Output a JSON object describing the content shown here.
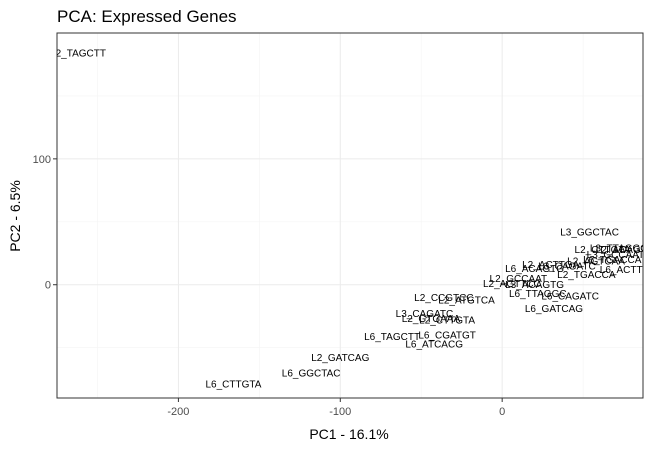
{
  "chart_data": {
    "type": "scatter",
    "title": "PCA: Expressed Genes",
    "xlabel": "PC1 - 16.1%",
    "ylabel": "PC2 - 6.5%",
    "xlim": [
      -275,
      87
    ],
    "ylim": [
      -90,
      200
    ],
    "x_ticks": [
      -200,
      -100,
      0
    ],
    "y_ticks": [
      0,
      100
    ],
    "grid": true,
    "legend": "none",
    "points": [
      {
        "label": "L2_TAGCTT",
        "x": -262,
        "y": 184
      },
      {
        "label": "L3_GGCTAC",
        "x": 54,
        "y": 42
      },
      {
        "label": "L2_CTTGTA",
        "x": 62,
        "y": 28
      },
      {
        "label": "L3_TTAGGC",
        "x": 72,
        "y": 29
      },
      {
        "label": "L2_ACAGTG",
        "x": 76,
        "y": 28
      },
      {
        "label": "L3_GCCAAT",
        "x": 70,
        "y": 24
      },
      {
        "label": "L6_TGACCA",
        "x": 68,
        "y": 20
      },
      {
        "label": "L2_AGTCAA",
        "x": 58,
        "y": 19
      },
      {
        "label": "L6_ACTTGA",
        "x": 78,
        "y": 12
      },
      {
        "label": "L2_ACTTGA",
        "x": 30,
        "y": 16
      },
      {
        "label": "L3_CAGATC",
        "x": 40,
        "y": 15
      },
      {
        "label": "L6_ACAGTG",
        "x": 20,
        "y": 13
      },
      {
        "label": "L2_TGACCA",
        "x": 52,
        "y": 8
      },
      {
        "label": "L2_GCCAAT",
        "x": 10,
        "y": 5
      },
      {
        "label": "L2_AGTTCC",
        "x": 6,
        "y": 1
      },
      {
        "label": "L3_ACAGTG",
        "x": 20,
        "y": 0
      },
      {
        "label": "L6_TTAGGC",
        "x": 22,
        "y": -7
      },
      {
        "label": "L6_CAGATC",
        "x": 42,
        "y": -9
      },
      {
        "label": "L6_GATCAG",
        "x": 32,
        "y": -19
      },
      {
        "label": "L2_CCGTCC",
        "x": -36,
        "y": -10
      },
      {
        "label": "L2_ATGTCA",
        "x": -22,
        "y": -12
      },
      {
        "label": "L3_CAGATC",
        "x": -48,
        "y": -23
      },
      {
        "label": "L2_GTGAAA",
        "x": -44,
        "y": -27
      },
      {
        "label": "L2_CTTGTA",
        "x": -34,
        "y": -28
      },
      {
        "label": "L6_TAGCTT",
        "x": -68,
        "y": -41
      },
      {
        "label": "L6_CGATGT",
        "x": -34,
        "y": -40
      },
      {
        "label": "L6_ATCACG",
        "x": -42,
        "y": -47
      },
      {
        "label": "L2_GATCAG",
        "x": -100,
        "y": -58
      },
      {
        "label": "L6_GGCTAC",
        "x": -118,
        "y": -70
      },
      {
        "label": "L6_CTTGTA",
        "x": -166,
        "y": -79
      }
    ]
  }
}
